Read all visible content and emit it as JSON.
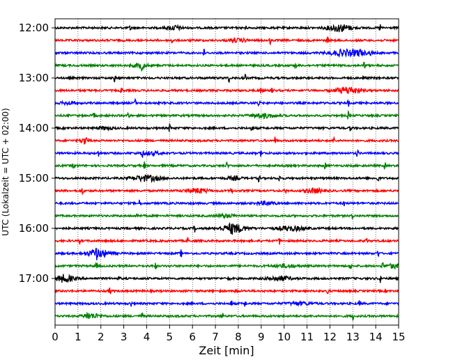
{
  "chart_data": {
    "type": "line",
    "title": "",
    "xlabel": "Zeit  [min]",
    "ylabel": "UTC (Lokalzeit = UTC + 02:00)",
    "xlim": [
      0,
      15
    ],
    "x_ticks": [
      0,
      1,
      2,
      3,
      4,
      5,
      6,
      7,
      8,
      9,
      10,
      11,
      12,
      13,
      14,
      15
    ],
    "y_tick_labels": [
      "12:00",
      "13:00",
      "14:00",
      "15:00",
      "16:00",
      "17:00"
    ],
    "row_interval_minutes": 15,
    "first_row_time": "12:00",
    "grid": "vertical dotted lines at each minute",
    "colors_cycle": [
      "#000000",
      "#ff0000",
      "#0000ff",
      "#008000"
    ],
    "rows": [
      {
        "time": "12:00",
        "color": "#000000",
        "spikes": [
          3.3,
          8.3,
          14.2
        ],
        "bursts": [
          [
            12.4,
            0.5,
            5
          ],
          [
            5.2,
            0.3,
            3
          ]
        ]
      },
      {
        "time": "12:15",
        "color": "#ff0000",
        "spikes": [
          5.1,
          9.4,
          11.9
        ],
        "bursts": [
          [
            8.0,
            0.4,
            2
          ]
        ]
      },
      {
        "time": "12:30",
        "color": "#0000ff",
        "spikes": [
          6.5,
          13.8
        ],
        "bursts": [
          [
            12.6,
            0.6,
            4
          ],
          [
            13.3,
            0.3,
            3
          ]
        ]
      },
      {
        "time": "12:45",
        "color": "#008000",
        "spikes": [
          3.8,
          10.5,
          13.5
        ],
        "bursts": [
          [
            3.7,
            0.3,
            3
          ]
        ]
      },
      {
        "time": "13:00",
        "color": "#000000",
        "spikes": [
          2.6,
          7.6,
          8.3,
          13.5
        ],
        "bursts": []
      },
      {
        "time": "13:15",
        "color": "#ff0000",
        "spikes": [
          2.9,
          9.0,
          9.5
        ],
        "bursts": [
          [
            12.8,
            0.5,
            5
          ]
        ]
      },
      {
        "time": "13:30",
        "color": "#0000ff",
        "spikes": [
          3.5,
          8.9,
          12.8
        ],
        "bursts": [
          [
            0.6,
            0.3,
            2
          ]
        ]
      },
      {
        "time": "13:45",
        "color": "#008000",
        "spikes": [
          1.7,
          3.2,
          12.8
        ],
        "bursts": [
          [
            9.1,
            0.5,
            3
          ]
        ]
      },
      {
        "time": "14:00",
        "color": "#000000",
        "spikes": [
          5.0,
          8.6,
          12.9
        ],
        "bursts": [
          [
            2.2,
            0.3,
            2
          ]
        ]
      },
      {
        "time": "14:15",
        "color": "#ff0000",
        "spikes": [
          1.3,
          9.6,
          12.2
        ],
        "bursts": [
          [
            1.3,
            0.2,
            3
          ]
        ]
      },
      {
        "time": "14:30",
        "color": "#0000ff",
        "spikes": [
          1.9,
          3.8,
          9.0,
          13.2
        ],
        "bursts": [
          [
            4.2,
            0.4,
            2
          ]
        ]
      },
      {
        "time": "14:45",
        "color": "#008000",
        "spikes": [
          0.8,
          3.9,
          7.5,
          11.8,
          14.4
        ],
        "bursts": []
      },
      {
        "time": "15:00",
        "color": "#000000",
        "spikes": [
          8.9,
          9.8,
          14.1
        ],
        "bursts": [
          [
            4.0,
            0.6,
            4
          ],
          [
            7.8,
            0.3,
            2
          ]
        ]
      },
      {
        "time": "15:15",
        "color": "#ff0000",
        "spikes": [
          1.2,
          7.7,
          10.1
        ],
        "bursts": [
          [
            6.2,
            0.5,
            3
          ],
          [
            11.3,
            0.4,
            3
          ]
        ]
      },
      {
        "time": "15:30",
        "color": "#0000ff",
        "spikes": [
          3.7,
          12.6
        ],
        "bursts": [
          [
            9.2,
            0.4,
            2
          ]
        ]
      },
      {
        "time": "15:45",
        "color": "#008000",
        "spikes": [
          3.6,
          13.0
        ],
        "bursts": [
          [
            7.5,
            0.4,
            2
          ]
        ]
      },
      {
        "time": "16:00",
        "color": "#000000",
        "spikes": [
          6.1,
          7.7
        ],
        "bursts": [
          [
            7.8,
            0.5,
            6
          ],
          [
            10.3,
            0.6,
            3
          ]
        ]
      },
      {
        "time": "16:15",
        "color": "#ff0000",
        "spikes": [
          1.1,
          5.8,
          9.8,
          13.6
        ],
        "bursts": []
      },
      {
        "time": "16:30",
        "color": "#0000ff",
        "spikes": [
          1.8,
          5.5,
          14.1
        ],
        "bursts": [
          [
            1.9,
            0.5,
            5
          ]
        ]
      },
      {
        "time": "16:45",
        "color": "#008000",
        "spikes": [
          1.8,
          4.4,
          12.9,
          14.3
        ],
        "bursts": [
          [
            10.0,
            0.5,
            2
          ],
          [
            14.8,
            0.3,
            3
          ]
        ]
      },
      {
        "time": "17:00",
        "color": "#000000",
        "spikes": [
          2.8,
          7.6,
          14.2
        ],
        "bursts": [
          [
            0.4,
            0.4,
            5
          ],
          [
            9.8,
            0.5,
            3
          ]
        ]
      },
      {
        "time": "17:15",
        "color": "#ff0000",
        "spikes": [
          2.4,
          7.9,
          11.9
        ],
        "bursts": []
      },
      {
        "time": "17:30",
        "color": "#0000ff",
        "spikes": [
          3.3,
          7.7,
          8.3,
          13.3
        ],
        "bursts": [
          [
            10.7,
            0.5,
            2
          ]
        ]
      },
      {
        "time": "17:45",
        "color": "#008000",
        "spikes": [
          1.4,
          3.8,
          7.3,
          13.0
        ],
        "bursts": [
          [
            1.6,
            0.4,
            3
          ]
        ]
      }
    ]
  }
}
